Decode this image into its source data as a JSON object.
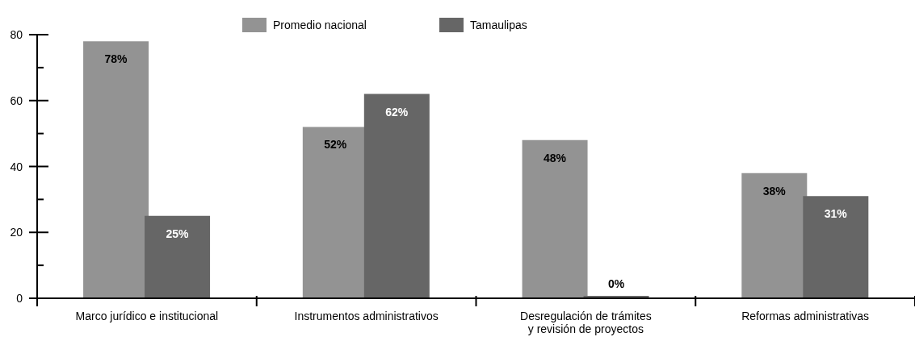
{
  "chart_data": {
    "type": "bar",
    "categories": [
      "Marco jurídico e institucional",
      "Instrumentos administrativos",
      "Desregulación de trámites\ny revisión de proyectos",
      "Reformas administrativas"
    ],
    "series": [
      {
        "name": "Promedio nacional",
        "color": "#939393",
        "values": [
          78,
          52,
          48,
          38
        ],
        "value_labels": [
          "78%",
          "52%",
          "48%",
          "38%"
        ]
      },
      {
        "name": "Tamaulipas",
        "color": "#666666",
        "values": [
          25,
          62,
          0,
          31
        ],
        "value_labels": [
          "25%",
          "62%",
          "0%",
          "31%"
        ]
      }
    ],
    "ylim": [
      0,
      80
    ],
    "yticks": [
      0,
      {
        "value": 10,
        "label": null
      },
      20,
      {
        "value": 30,
        "label": null
      },
      40,
      {
        "value": 50,
        "label": null
      },
      60,
      {
        "value": 70,
        "label": null
      },
      80
    ],
    "legend": "top"
  }
}
